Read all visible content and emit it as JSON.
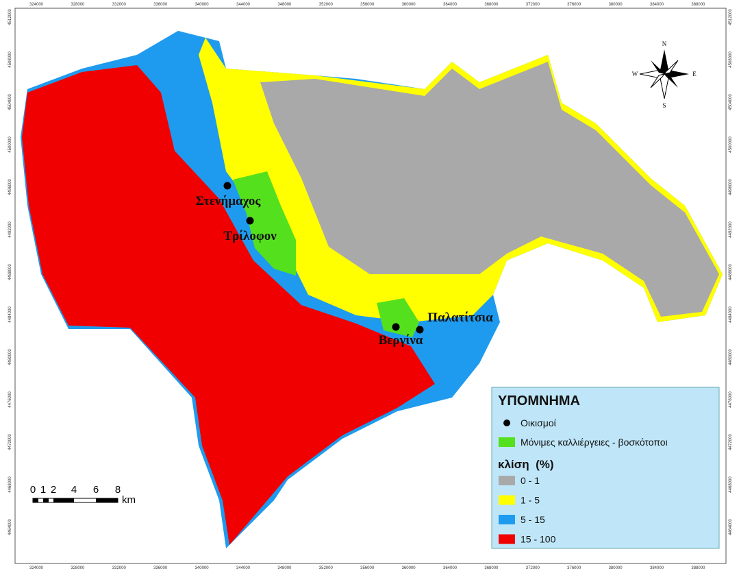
{
  "frame": {
    "x_labels": [
      324000,
      328000,
      332000,
      336000,
      340000,
      344000,
      348000,
      352000,
      356000,
      360000,
      364000,
      368000,
      372000,
      376000,
      380000,
      384000,
      388000
    ],
    "y_labels": [
      4512000,
      4508000,
      4504000,
      4500000,
      4496000,
      4492000,
      4488000,
      4484000,
      4480000,
      4476000,
      4472000,
      4468000,
      4464000
    ]
  },
  "places": [
    {
      "name": "Στενήμαχος"
    },
    {
      "name": "Τρίλοφον"
    },
    {
      "name": "Βεργίνα"
    },
    {
      "name": "Παλατίτσια"
    }
  ],
  "scale_bar": {
    "labels": [
      "0",
      "1",
      "2",
      "4",
      "6",
      "8"
    ],
    "unit": "km"
  },
  "compass": {
    "north": "N",
    "south": "S",
    "east": "E",
    "west": "W"
  },
  "legend": {
    "title": "ΥΠΟΜΝΗΜΑ",
    "settlements": "Οικισμοί",
    "cultivation": "Μόνιμες καλλιέργειες - βοσκότοποι",
    "slope_title": "κλίση  (%)",
    "classes": [
      {
        "label": "0 - 1",
        "color": "#a9a9a9"
      },
      {
        "label": "1 - 5",
        "color": "#ffff00"
      },
      {
        "label": "5 - 15",
        "color": "#1e9bef"
      },
      {
        "label": "15 - 100",
        "color": "#f00000"
      }
    ]
  }
}
